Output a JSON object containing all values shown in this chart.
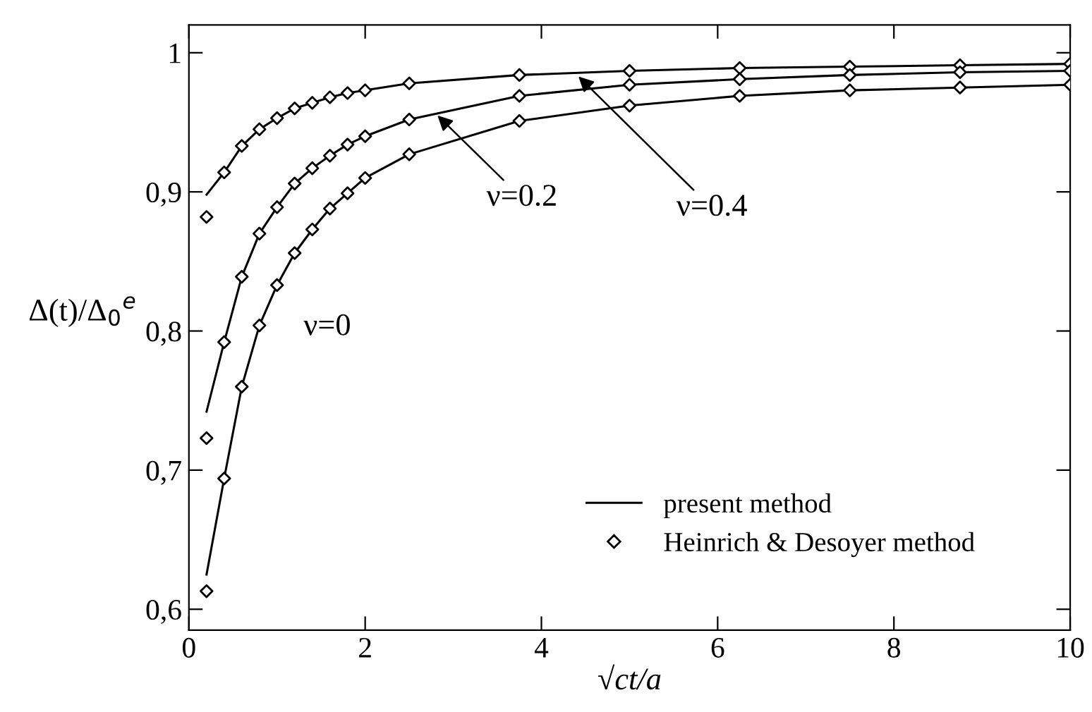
{
  "chart_data": {
    "type": "line",
    "xlabel": "√ct/a",
    "ylabel": "Δ(t)/Δ$_{0}$$^{e}$",
    "xlim": [
      0,
      10
    ],
    "ylim": [
      0.585,
      1.02
    ],
    "xticks": [
      0,
      2,
      4,
      6,
      8,
      10
    ],
    "yticks": [
      {
        "value": 0.6,
        "label": "0,6"
      },
      {
        "value": 0.7,
        "label": "0,7"
      },
      {
        "value": 0.8,
        "label": "0,8"
      },
      {
        "value": 0.9,
        "label": "0,9"
      },
      {
        "value": 1,
        "label": "1"
      }
    ],
    "grid": false,
    "legend": "bottom right",
    "line_style": "solid",
    "x": [
      0.2,
      0.4,
      0.6,
      0.8,
      1.0,
      1.2,
      1.4,
      1.6,
      1.8,
      2.0,
      2.5,
      3.75,
      5,
      6.25,
      7.5,
      8.75,
      10
    ],
    "series": [
      {
        "name": "present method",
        "color": "#000000",
        "marker": "none",
        "values": [
          0.898,
          0.914,
          0.933,
          0.945,
          0.953,
          0.96,
          0.964,
          0.968,
          0.971,
          0.973,
          0.978,
          0.984,
          0.987,
          0.989,
          0.99,
          0.991,
          0.992
        ]
      },
      {
        "color": "#000000",
        "marker": "none",
        "values": [
          0.742,
          0.792,
          0.839,
          0.87,
          0.889,
          0.906,
          0.917,
          0.926,
          0.934,
          0.94,
          0.952,
          0.969,
          0.977,
          0.981,
          0.984,
          0.986,
          0.987
        ]
      },
      {
        "color": "#000000",
        "marker": "none",
        "values": [
          0.625,
          0.694,
          0.76,
          0.804,
          0.833,
          0.856,
          0.873,
          0.888,
          0.899,
          0.91,
          0.927,
          0.951,
          0.962,
          0.969,
          0.973,
          0.975,
          0.977
        ]
      },
      {
        "name": "Heinrich & Desoyer method",
        "type": "scatter",
        "color": "#000000",
        "marker": "diamond",
        "values": [
          0.882,
          0.914,
          0.933,
          0.945,
          0.953,
          0.96,
          0.964,
          0.968,
          0.971,
          0.973,
          0.978,
          0.984,
          0.987,
          0.989,
          0.99,
          0.991,
          0.992
        ]
      },
      {
        "type": "scatter",
        "color": "#000000",
        "marker": "diamond",
        "values": [
          0.723,
          0.792,
          0.839,
          0.87,
          0.889,
          0.906,
          0.917,
          0.926,
          0.934,
          0.94,
          0.952,
          0.969,
          0.977,
          0.981,
          0.984,
          0.986,
          0.987
        ]
      },
      {
        "type": "scatter",
        "color": "#000000",
        "marker": "diamond",
        "values": [
          0.613,
          0.694,
          0.76,
          0.804,
          0.833,
          0.856,
          0.873,
          0.888,
          0.899,
          0.91,
          0.927,
          0.951,
          0.962,
          0.969,
          0.973,
          0.975,
          0.977
        ]
      }
    ],
    "annotations": [
      "ν=0",
      {
        "text": "ν=0.2",
        "x": 2.82,
        "y": 0.955
      },
      {
        "text": "ν=0.4",
        "x": 4.42,
        "y": 0.983
      }
    ]
  }
}
